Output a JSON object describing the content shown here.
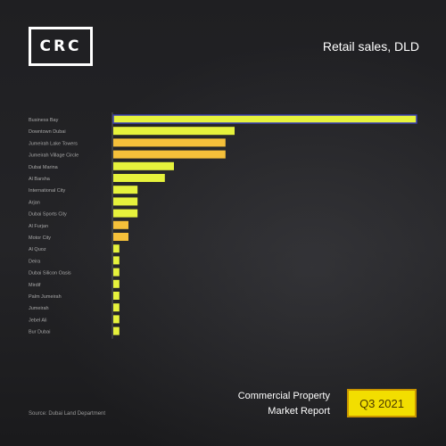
{
  "header": {
    "logo_text": "CRC",
    "title": "Retail sales, DLD"
  },
  "footer": {
    "source": "Source: Dubai Land Department",
    "report_line1": "Commercial Property",
    "report_line2": "Market Report",
    "period": "Q3 2021"
  },
  "colors": {
    "bar_yellow": "#e6f23c",
    "bar_orange": "#f5c03a",
    "highlight_stroke": "#3a3fb0",
    "background": "#1c1c1e"
  },
  "chart_data": {
    "type": "bar",
    "orientation": "horizontal",
    "title": "Retail sales, DLD",
    "categories": [
      "Business Bay",
      "Downtown Dubai",
      "Jumeirah Lake Towers",
      "Jumeirah Village Circle",
      "Dubai Marina",
      "Al Barsha",
      "International City",
      "Arjan",
      "Dubai Sports City",
      "Al Furjan",
      "Motor City",
      "Al Quoz",
      "Deira",
      "Dubai Silicon Oasis",
      "Mirdif",
      "Palm Jumeirah",
      "Jumeirah",
      "Jebel Ali",
      "Bur Dubai"
    ],
    "values": [
      100,
      40,
      37,
      37,
      20,
      17,
      8,
      8,
      8,
      5,
      5,
      2,
      2,
      2,
      2,
      2,
      2,
      2,
      2
    ],
    "bar_colors": [
      "yellow",
      "yellow",
      "orange",
      "orange",
      "yellow",
      "yellow",
      "yellow",
      "yellow",
      "yellow",
      "orange",
      "orange",
      "yellow",
      "yellow",
      "yellow",
      "yellow",
      "yellow",
      "yellow",
      "yellow",
      "yellow"
    ],
    "highlighted_index": 0,
    "xlim": [
      0,
      100
    ],
    "grid": false,
    "legend": "none"
  }
}
